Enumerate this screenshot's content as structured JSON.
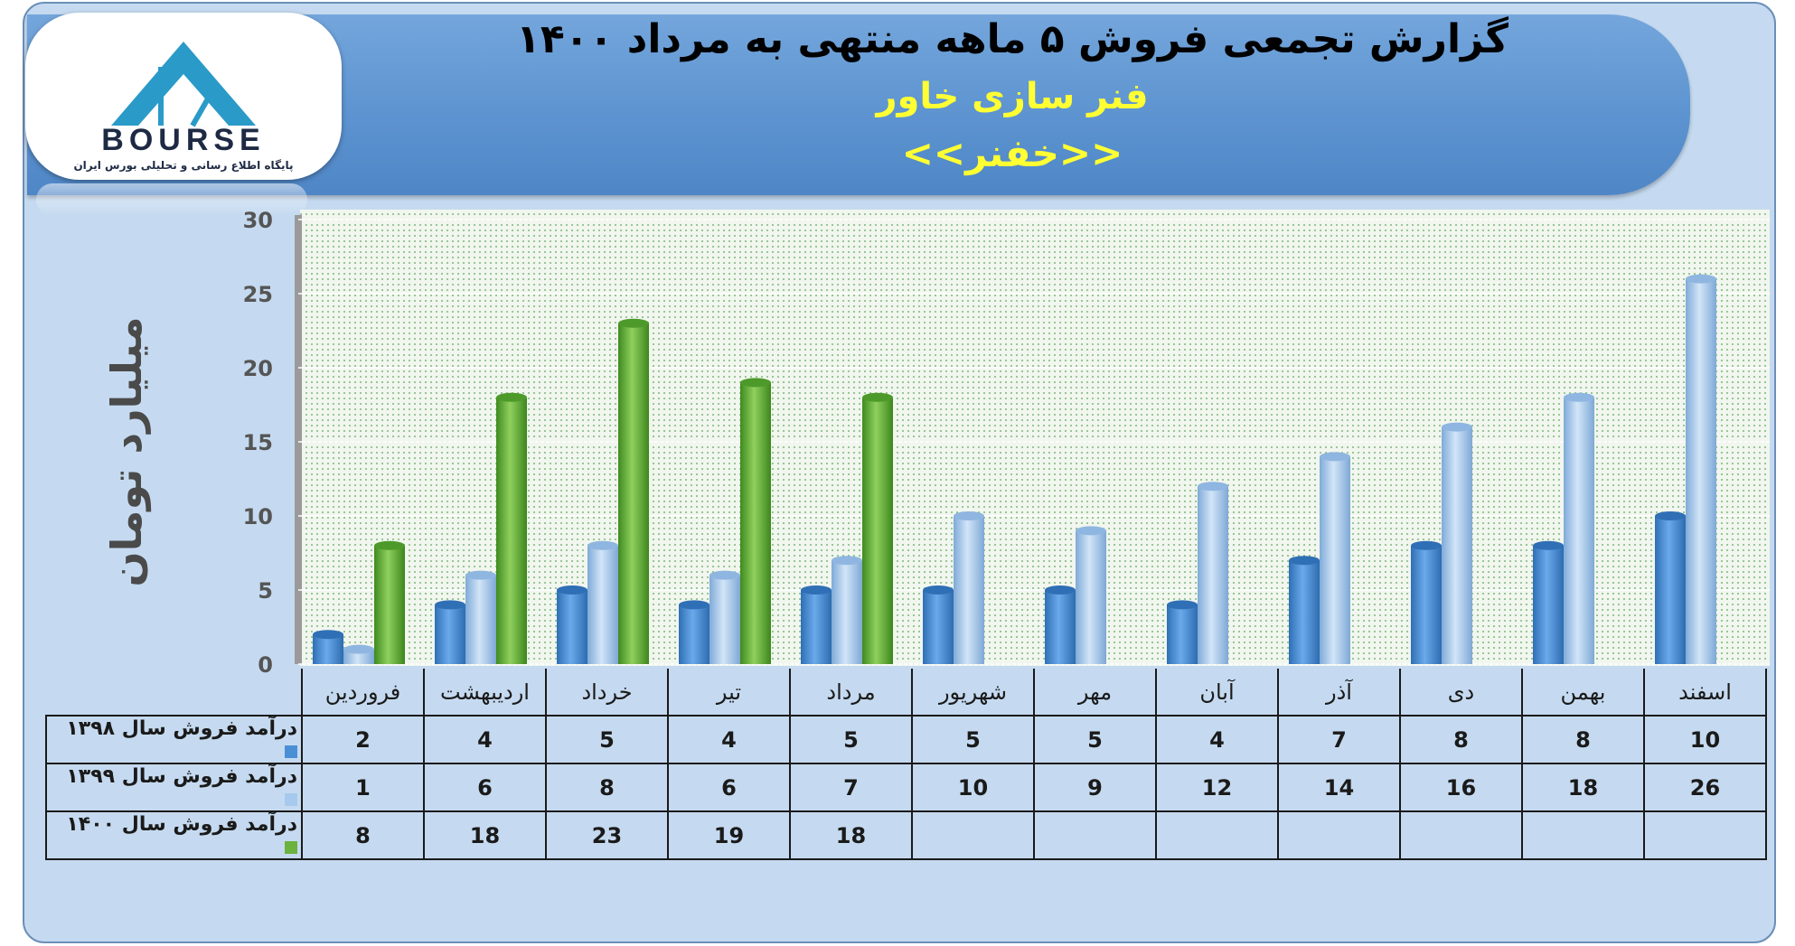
{
  "header": {
    "title": "گزارش تجمعی فروش ۵ ماهه منتهی به مرداد ۱۴۰۰",
    "subtitle": "فنر سازی خاور",
    "ticker": "<<خفنر>>"
  },
  "logo": {
    "brand": "BOURSE",
    "tagline": "پایگاه اطلاع رسانی و تحلیلی بورس ایران"
  },
  "chart_data": {
    "type": "bar",
    "ylabel": "میلیارد تومان",
    "ylim": [
      0,
      30
    ],
    "yticks": [
      0,
      5,
      10,
      15,
      20,
      25,
      30
    ],
    "grid": true,
    "categories": [
      "فروردین",
      "اردیبهشت",
      "خرداد",
      "تیر",
      "مرداد",
      "شهریور",
      "مهر",
      "آبان",
      "آذر",
      "دی",
      "بهمن",
      "اسفند"
    ],
    "series": [
      {
        "name": "درآمد فروش سال ۱۳۹۸",
        "color": "#4a8fd6",
        "values": [
          2,
          4,
          5,
          4,
          5,
          5,
          5,
          4,
          7,
          8,
          8,
          10
        ]
      },
      {
        "name": "درآمد فروش سال ۱۳۹۹",
        "color": "#a7c9ee",
        "values": [
          1,
          6,
          8,
          6,
          7,
          10,
          9,
          12,
          14,
          16,
          18,
          26
        ]
      },
      {
        "name": "درآمد فروش سال ۱۴۰۰",
        "color": "#6bb33e",
        "values": [
          8,
          18,
          23,
          19,
          18,
          null,
          null,
          null,
          null,
          null,
          null,
          null
        ]
      }
    ]
  }
}
